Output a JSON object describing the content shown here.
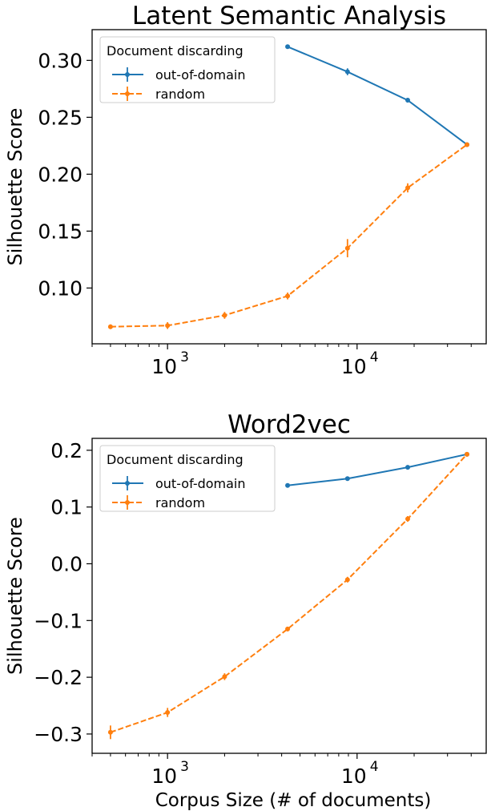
{
  "colors": {
    "out_of_domain": "#1f77b4",
    "random": "#ff7f0e"
  },
  "chart_data": [
    {
      "type": "line",
      "title": "Latent Semantic Analysis",
      "xlabel": "",
      "ylabel": "Silhouette Score",
      "xscale": "log",
      "xlim": [
        400,
        48000
      ],
      "ylim": [
        0.051,
        0.327
      ],
      "xticks": [
        {
          "value": 1000,
          "label": "10",
          "exp": "3"
        },
        {
          "value": 10000,
          "label": "10",
          "exp": "4"
        }
      ],
      "yticks": [
        {
          "value": 0.1,
          "label": "0.10"
        },
        {
          "value": 0.15,
          "label": "0.15"
        },
        {
          "value": 0.2,
          "label": "0.20"
        },
        {
          "value": 0.25,
          "label": "0.25"
        },
        {
          "value": 0.3,
          "label": "0.30"
        }
      ],
      "grid": false,
      "legend": {
        "title": "Document discarding",
        "position": "top-left"
      },
      "series": [
        {
          "name": "out-of-domain",
          "style": "solid",
          "x": [
            4300,
            8900,
            18500,
            38000
          ],
          "y": [
            0.312,
            0.29,
            0.265,
            0.226
          ],
          "err": [
            0.001,
            0.003,
            0.002,
            0.001
          ]
        },
        {
          "name": "random",
          "style": "dashed",
          "x": [
            500,
            1000,
            2000,
            4300,
            8900,
            18500,
            38000
          ],
          "y": [
            0.066,
            0.067,
            0.076,
            0.093,
            0.135,
            0.188,
            0.226
          ],
          "err": [
            0.002,
            0.003,
            0.003,
            0.003,
            0.008,
            0.004,
            0.001
          ]
        }
      ]
    },
    {
      "type": "line",
      "title": "Word2vec",
      "xlabel": "Corpus Size (# of documents)",
      "ylabel": "Silhouette Score",
      "xscale": "log",
      "xlim": [
        400,
        48000
      ],
      "ylim": [
        -0.334,
        0.221
      ],
      "xticks": [
        {
          "value": 1000,
          "label": "10",
          "exp": "3"
        },
        {
          "value": 10000,
          "label": "10",
          "exp": "4"
        }
      ],
      "yticks": [
        {
          "value": -0.3,
          "label": "−0.3"
        },
        {
          "value": -0.2,
          "label": "−0.2"
        },
        {
          "value": -0.1,
          "label": "−0.1"
        },
        {
          "value": 0.0,
          "label": "0.0"
        },
        {
          "value": 0.1,
          "label": "0.1"
        },
        {
          "value": 0.2,
          "label": "0.2"
        }
      ],
      "grid": false,
      "legend": {
        "title": "Document discarding",
        "position": "top-left"
      },
      "series": [
        {
          "name": "out-of-domain",
          "style": "solid",
          "x": [
            4300,
            8900,
            18500,
            38000
          ],
          "y": [
            0.138,
            0.15,
            0.17,
            0.193
          ],
          "err": [
            0.002,
            0.002,
            0.002,
            0.002
          ]
        },
        {
          "name": "random",
          "style": "dashed",
          "x": [
            500,
            1000,
            2000,
            4300,
            8900,
            18500,
            38000
          ],
          "y": [
            -0.297,
            -0.262,
            -0.199,
            -0.115,
            -0.028,
            0.079,
            0.193
          ],
          "err": [
            0.012,
            0.008,
            0.006,
            0.004,
            0.005,
            0.005,
            0.002
          ]
        }
      ]
    }
  ]
}
